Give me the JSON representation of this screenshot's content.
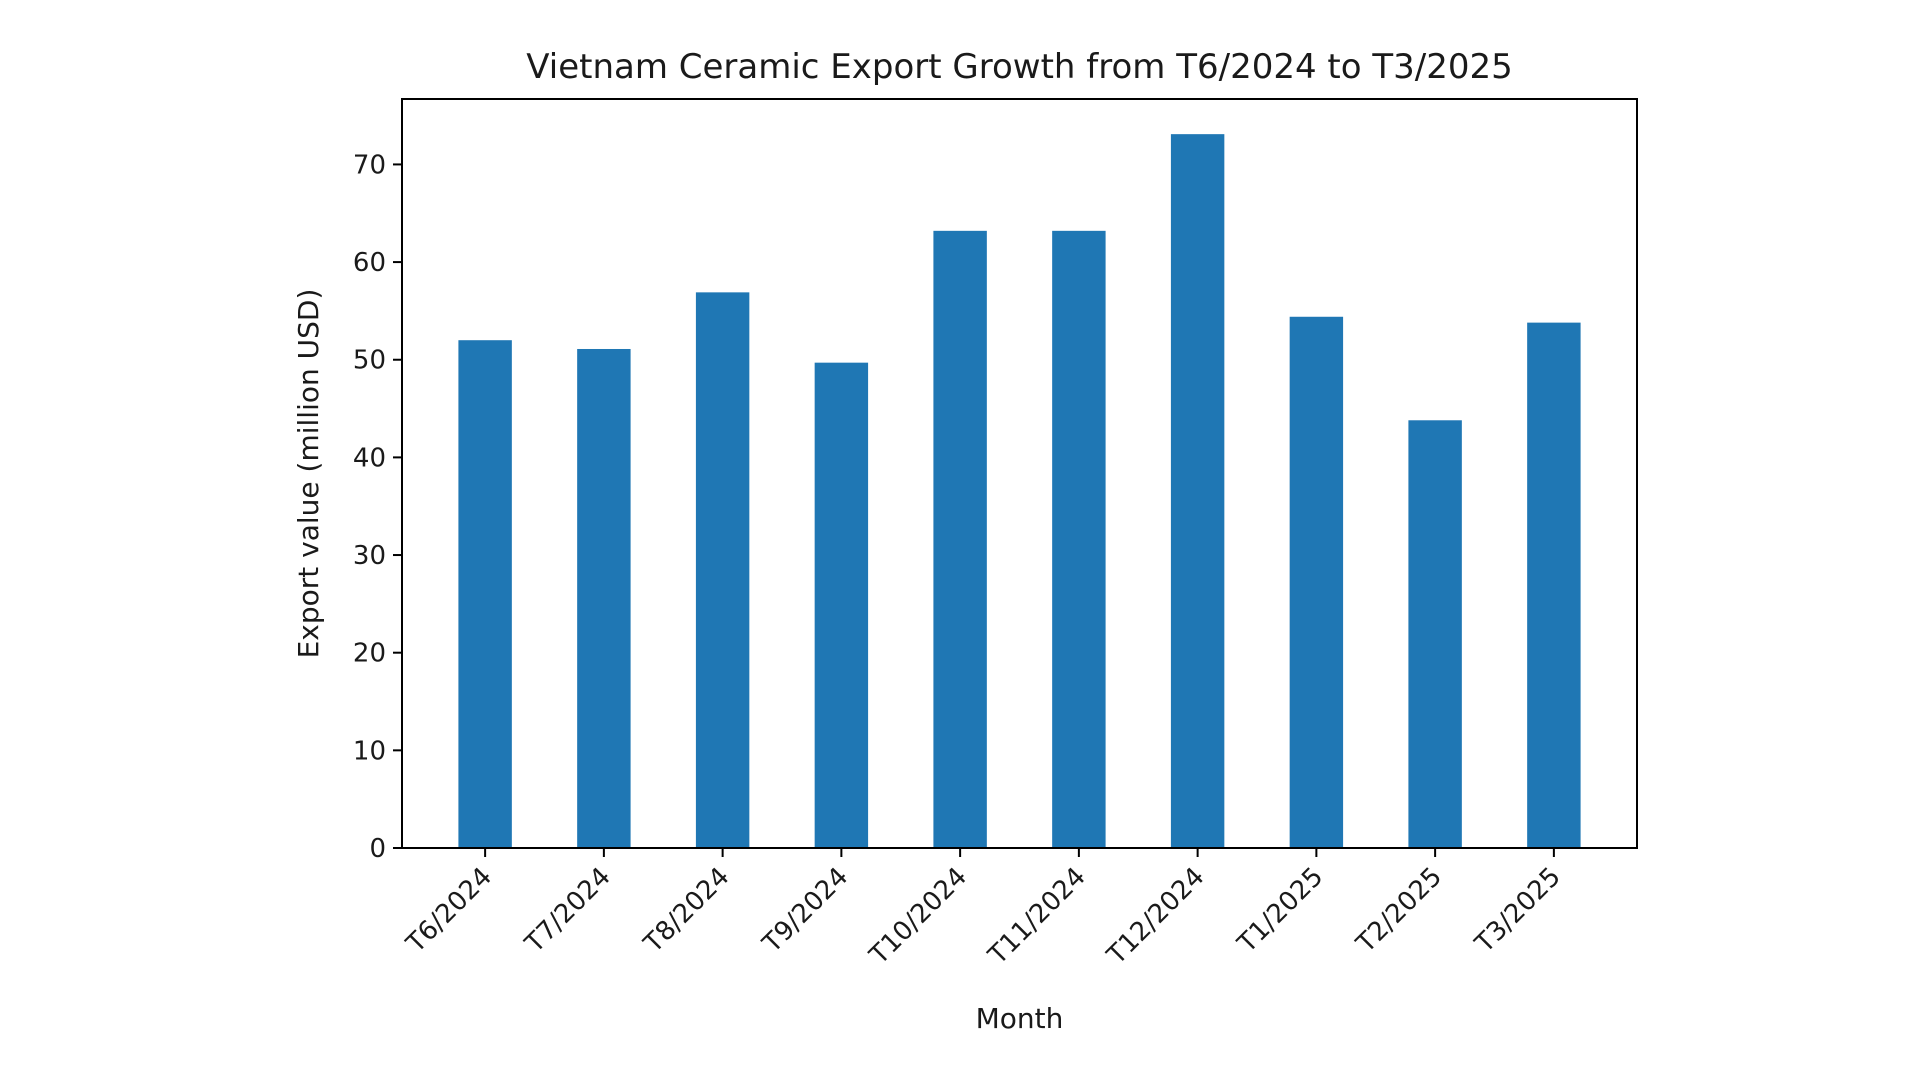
{
  "chart_data": {
    "type": "bar",
    "title": "Vietnam Ceramic Export Growth from T6/2024 to T3/2025",
    "xlabel": "Month",
    "ylabel": "Export value (million USD)",
    "categories": [
      "T6/2024",
      "T7/2024",
      "T8/2024",
      "T9/2024",
      "T10/2024",
      "T11/2024",
      "T12/2024",
      "T1/2025",
      "T2/2025",
      "T3/2025"
    ],
    "values": [
      52.0,
      51.1,
      56.9,
      49.7,
      63.2,
      63.2,
      73.1,
      54.4,
      43.8,
      53.8
    ],
    "ylim": [
      0,
      76.7
    ],
    "yticks": [
      0,
      10,
      20,
      30,
      40,
      50,
      60,
      70
    ],
    "ytick_labels": [
      "0",
      "10",
      "20",
      "30",
      "40",
      "50",
      "60",
      "70"
    ],
    "grid": false,
    "bar_color": "#1f77b4"
  }
}
